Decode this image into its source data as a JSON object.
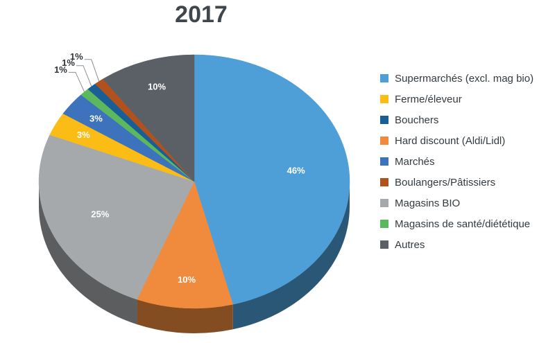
{
  "chart_data": {
    "type": "pie",
    "title": "2017",
    "legend_position": "right",
    "slices": [
      {
        "name": "Supermarchés (excl. mag bio)",
        "value": 46,
        "label": "46%",
        "color": "#4e9fd8"
      },
      {
        "name": "Hard discount (Aldi/Lidl)",
        "value": 10,
        "label": "10%",
        "color": "#f08a3c"
      },
      {
        "name": "Magasins BIO",
        "value": 25,
        "label": "25%",
        "color": "#a5a9ab"
      },
      {
        "name": "Ferme/éleveur",
        "value": 3,
        "label": "3%",
        "color": "#fbbc16"
      },
      {
        "name": "Marchés",
        "value": 3,
        "label": "3%",
        "color": "#3d72bd"
      },
      {
        "name": "Magasins de santé/diététique",
        "value": 1,
        "label": "1%",
        "color": "#5cb85c"
      },
      {
        "name": "Bouchers",
        "value": 1,
        "label": "1%",
        "color": "#1a5e96"
      },
      {
        "name": "Boulangers/Pâtissiers",
        "value": 1,
        "label": "1%",
        "color": "#b3511d"
      },
      {
        "name": "Autres",
        "value": 10,
        "label": "10%",
        "color": "#5a6066"
      }
    ],
    "legend": [
      {
        "label": "Supermarchés (excl. mag bio)",
        "color": "#4e9fd8"
      },
      {
        "label": "Ferme/éleveur",
        "color": "#fbbc16"
      },
      {
        "label": "Bouchers",
        "color": "#1a5e96"
      },
      {
        "label": "Hard discount (Aldi/Lidl)",
        "color": "#f08a3c"
      },
      {
        "label": "Marchés",
        "color": "#3d72bd"
      },
      {
        "label": "Boulangers/Pâtissiers",
        "color": "#b3511d"
      },
      {
        "label": "Magasins BIO",
        "color": "#a5a9ab"
      },
      {
        "label": "Magasins de santé/diététique",
        "color": "#5cb85c"
      },
      {
        "label": "Autres",
        "color": "#5a6066"
      }
    ]
  }
}
